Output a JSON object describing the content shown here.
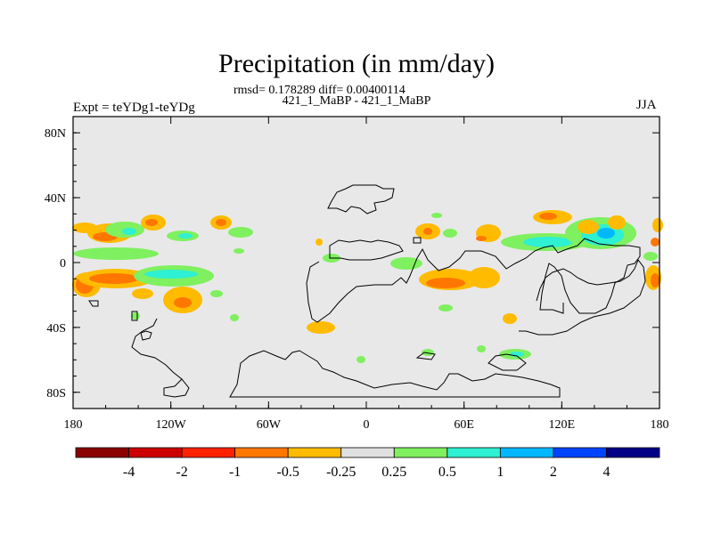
{
  "chart_data": {
    "type": "heatmap",
    "title": "Precipitation (in mm/day)",
    "stats": "rmsd= 0.178289 diff= 0.00400114",
    "subtitle": "421_1_MaBP - 421_1_MaBP",
    "left_label": "Expt = teYDg1-teYDg",
    "right_label": "JJA",
    "xlim": [
      -180,
      180
    ],
    "ylim": [
      -90,
      90
    ],
    "x_ticks": [
      {
        "value": -180,
        "label": "180"
      },
      {
        "value": -120,
        "label": "120W"
      },
      {
        "value": -60,
        "label": "60W"
      },
      {
        "value": 0,
        "label": "0"
      },
      {
        "value": 60,
        "label": "60E"
      },
      {
        "value": 120,
        "label": "120E"
      },
      {
        "value": 180,
        "label": "180"
      }
    ],
    "y_ticks": [
      {
        "value": 80,
        "label": "80N"
      },
      {
        "value": 40,
        "label": "40N"
      },
      {
        "value": 0,
        "label": "0"
      },
      {
        "value": -40,
        "label": "40S"
      },
      {
        "value": -80,
        "label": "80S"
      }
    ],
    "colorbar": {
      "colors": [
        "#8b0000",
        "#cc0000",
        "#ff2200",
        "#ff7700",
        "#ffbb00",
        "#e0e0e0",
        "#7ff05f",
        "#2ef0d2",
        "#00b8ff",
        "#0044ff",
        "#000088"
      ],
      "tick_labels": [
        "-4",
        "-2",
        "-1",
        "-0.5",
        "-0.25",
        "0.25",
        "0.5",
        "1",
        "2",
        "4"
      ]
    },
    "background_color": "#e8e8e8"
  }
}
